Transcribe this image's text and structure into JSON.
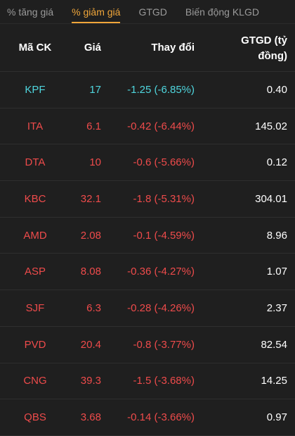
{
  "tabs": [
    {
      "label": "% tăng giá",
      "active": false
    },
    {
      "label": "% giảm giá",
      "active": true
    },
    {
      "label": "GTGD",
      "active": false
    },
    {
      "label": "Biến động KLGD",
      "active": false
    }
  ],
  "columns": {
    "symbol": "Mã CK",
    "price": "Giá",
    "change": "Thay đổi",
    "value_line1": "GTGD (tỷ",
    "value_line2": "đồng)"
  },
  "colors": {
    "accent": "#f0a63a",
    "cyan": "#4fd6de",
    "red": "#ee4b4b",
    "background": "#1f1f1f"
  },
  "rows": [
    {
      "symbol": "KPF",
      "price": "17",
      "change": "-1.25 (-6.85%)",
      "value": "0.40",
      "color": "cyan"
    },
    {
      "symbol": "ITA",
      "price": "6.1",
      "change": "-0.42 (-6.44%)",
      "value": "145.02",
      "color": "red"
    },
    {
      "symbol": "DTA",
      "price": "10",
      "change": "-0.6 (-5.66%)",
      "value": "0.12",
      "color": "red"
    },
    {
      "symbol": "KBC",
      "price": "32.1",
      "change": "-1.8 (-5.31%)",
      "value": "304.01",
      "color": "red"
    },
    {
      "symbol": "AMD",
      "price": "2.08",
      "change": "-0.1 (-4.59%)",
      "value": "8.96",
      "color": "red"
    },
    {
      "symbol": "ASP",
      "price": "8.08",
      "change": "-0.36 (-4.27%)",
      "value": "1.07",
      "color": "red"
    },
    {
      "symbol": "SJF",
      "price": "6.3",
      "change": "-0.28 (-4.26%)",
      "value": "2.37",
      "color": "red"
    },
    {
      "symbol": "PVD",
      "price": "20.4",
      "change": "-0.8 (-3.77%)",
      "value": "82.54",
      "color": "red"
    },
    {
      "symbol": "CNG",
      "price": "39.3",
      "change": "-1.5 (-3.68%)",
      "value": "14.25",
      "color": "red"
    },
    {
      "symbol": "QBS",
      "price": "3.68",
      "change": "-0.14 (-3.66%)",
      "value": "0.97",
      "color": "red"
    }
  ]
}
